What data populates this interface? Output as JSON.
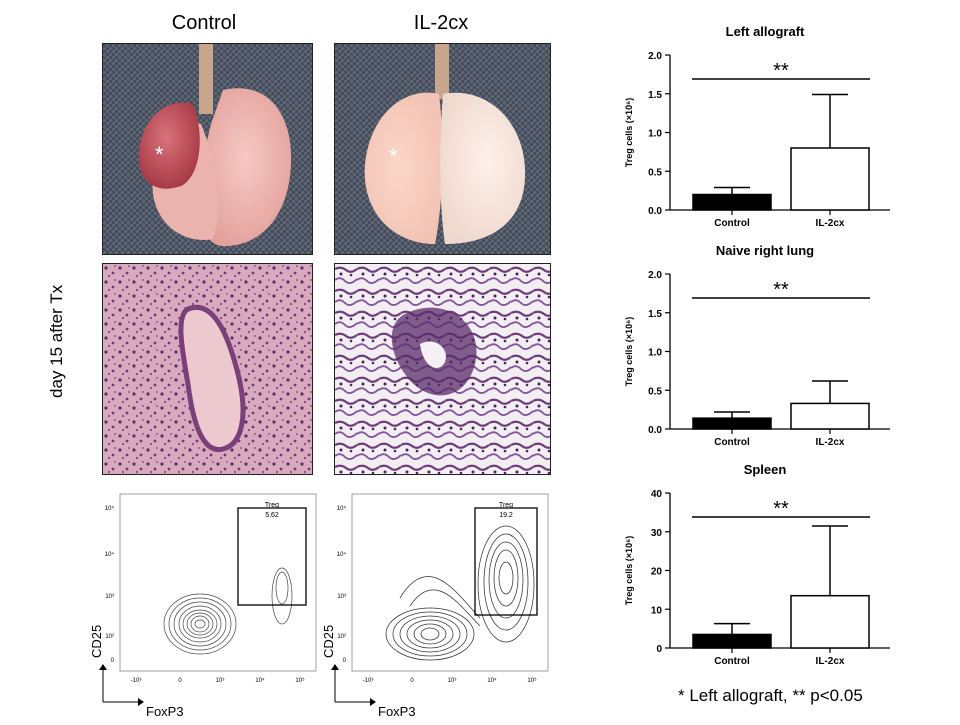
{
  "columns": {
    "control": "Control",
    "treatment": "IL-2cx"
  },
  "side_label": "day 15 after Tx",
  "flow": {
    "y_axis": "CD25",
    "x_axis": "FoxP3",
    "x_ticks": [
      "-10³",
      "0",
      "10³",
      "10⁴",
      "10⁵"
    ],
    "y_ticks": [
      "10⁵",
      "10⁴",
      "10³",
      "10²",
      "0"
    ],
    "control": {
      "gate_label": "Treg",
      "gate_value": "5.62"
    },
    "treatment": {
      "gate_label": "Treg",
      "gate_value": "19.2"
    }
  },
  "footnote": "* Left allograft, ** p<0.05",
  "chart_data": [
    {
      "type": "bar",
      "title": "Left allograft",
      "ylabel": "Treg cells (×10⁶)",
      "categories": [
        "Control",
        "IL-2cx"
      ],
      "values": [
        0.2,
        0.8
      ],
      "errors": [
        0.09,
        0.69
      ],
      "ylim": [
        0,
        2.0
      ],
      "yticks": [
        "0.0",
        "0.5",
        "1.0",
        "1.5",
        "2.0"
      ],
      "significance": "**",
      "bar_colors": [
        "#000000",
        "#ffffff"
      ]
    },
    {
      "type": "bar",
      "title": "Naive right lung",
      "ylabel": "Treg cells (×10⁶)",
      "categories": [
        "Control",
        "IL-2cx"
      ],
      "values": [
        0.14,
        0.33
      ],
      "errors": [
        0.08,
        0.29
      ],
      "ylim": [
        0,
        2.0
      ],
      "yticks": [
        "0.0",
        "0.5",
        "1.0",
        "1.5",
        "2.0"
      ],
      "significance": "**",
      "bar_colors": [
        "#000000",
        "#ffffff"
      ]
    },
    {
      "type": "bar",
      "title": "Spleen",
      "ylabel": "Treg cells (×10⁶)",
      "categories": [
        "Control",
        "IL-2cx"
      ],
      "values": [
        3.5,
        13.5
      ],
      "errors": [
        2.8,
        18.0
      ],
      "ylim": [
        0,
        40
      ],
      "yticks": [
        "0",
        "10",
        "20",
        "30",
        "40"
      ],
      "significance": "**",
      "bar_colors": [
        "#000000",
        "#ffffff"
      ]
    }
  ]
}
